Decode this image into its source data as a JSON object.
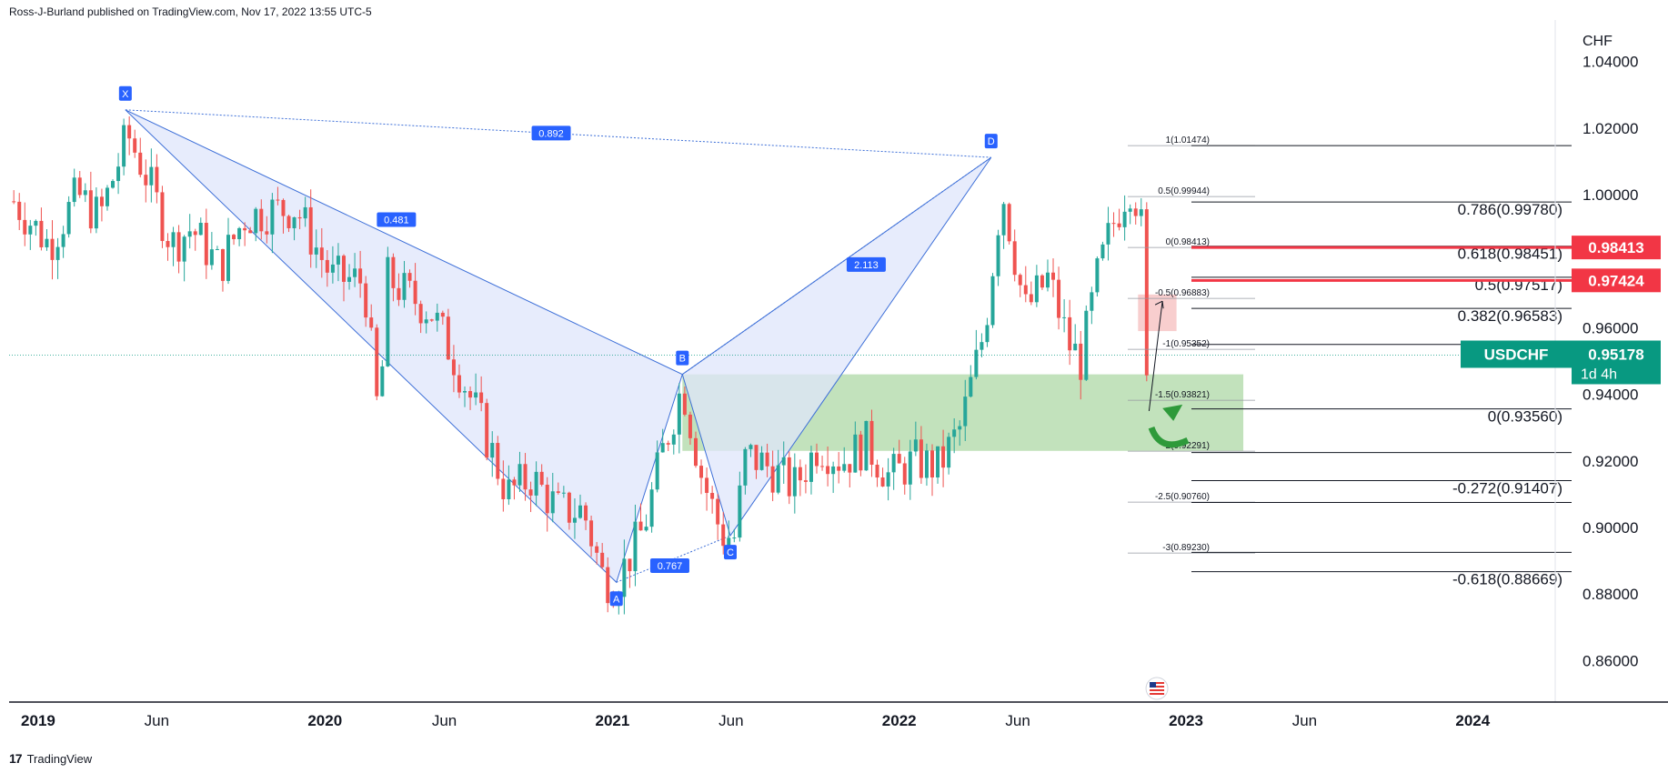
{
  "header": {
    "attribution": "Ross-J-Burland published on TradingView.com, Nov 17, 2022 13:55 UTC-5"
  },
  "footer": {
    "brand": "TradingView",
    "logo_icon": "tradingview-logo-icon"
  },
  "colors": {
    "up": "#26a69a",
    "down": "#ef5350",
    "pattern_fill": "#dfe6fb",
    "pattern_line": "#3d6fd8",
    "label_bg": "#2962ff",
    "green_zone": "#b7ddb0",
    "red_zone": "#f7c5c6",
    "symbol_tag": "#089981",
    "level_tag": "#f23645"
  },
  "chart_data": {
    "type": "candlestick",
    "symbol": "USDCHF",
    "currency_label": "CHF",
    "y_ticks": [
      1.04,
      1.02,
      1.0,
      0.98,
      0.96,
      0.94,
      0.92,
      0.9,
      0.88,
      0.86
    ],
    "y_tick_labels": [
      "1.04000",
      "1.02000",
      "1.00000",
      "",
      "0.96000",
      "0.94000",
      "0.92000",
      "0.90000",
      "0.88000",
      "0.86000"
    ],
    "ylim": [
      0.8475,
      1.0525
    ],
    "xlim": [
      "2018-11-25",
      "2024-04-15"
    ],
    "x_ticks": [
      {
        "date": "2019-01-01",
        "label": "2019",
        "bold": true
      },
      {
        "date": "2019-06-01",
        "label": "Jun",
        "bold": false
      },
      {
        "date": "2020-01-01",
        "label": "2020",
        "bold": true
      },
      {
        "date": "2020-06-01",
        "label": "Jun",
        "bold": false
      },
      {
        "date": "2021-01-01",
        "label": "2021",
        "bold": true
      },
      {
        "date": "2021-06-01",
        "label": "Jun",
        "bold": false
      },
      {
        "date": "2022-01-01",
        "label": "2022",
        "bold": true
      },
      {
        "date": "2022-06-01",
        "label": "Jun",
        "bold": false
      },
      {
        "date": "2023-01-01",
        "label": "2023",
        "bold": true
      },
      {
        "date": "2023-06-01",
        "label": "Jun",
        "bold": false
      },
      {
        "date": "2024-01-01",
        "label": "2024",
        "bold": true
      }
    ],
    "price_path": [
      [
        "2018-12-01",
        0.998
      ],
      [
        "2019-01-15",
        0.985
      ],
      [
        "2019-02-20",
        1.0
      ],
      [
        "2019-03-20",
        0.993
      ],
      [
        "2019-04-25",
        1.018
      ],
      [
        "2019-05-20",
        1.005
      ],
      [
        "2019-06-20",
        0.985
      ],
      [
        "2019-07-15",
        0.99
      ],
      [
        "2019-08-20",
        0.978
      ],
      [
        "2019-09-20",
        0.993
      ],
      [
        "2019-10-20",
        0.995
      ],
      [
        "2019-11-25",
        0.996
      ],
      [
        "2020-01-10",
        0.975
      ],
      [
        "2020-02-20",
        0.974
      ],
      [
        "2020-03-10",
        0.93
      ],
      [
        "2020-03-20",
        0.975
      ],
      [
        "2020-04-15",
        0.97
      ],
      [
        "2020-05-15",
        0.965
      ],
      [
        "2020-06-15",
        0.95
      ],
      [
        "2020-07-20",
        0.93
      ],
      [
        "2020-08-20",
        0.91
      ],
      [
        "2020-09-20",
        0.915
      ],
      [
        "2020-10-25",
        0.905
      ],
      [
        "2020-11-25",
        0.905
      ],
      [
        "2020-12-20",
        0.885
      ],
      [
        "2021-01-05",
        0.883
      ],
      [
        "2021-02-10",
        0.9
      ],
      [
        "2021-03-05",
        0.922
      ],
      [
        "2021-03-31",
        0.943
      ],
      [
        "2021-04-25",
        0.915
      ],
      [
        "2021-05-20",
        0.898
      ],
      [
        "2021-06-05",
        0.897
      ],
      [
        "2021-06-20",
        0.922
      ],
      [
        "2021-07-20",
        0.918
      ],
      [
        "2021-08-20",
        0.912
      ],
      [
        "2021-09-20",
        0.925
      ],
      [
        "2021-10-20",
        0.92
      ],
      [
        "2021-11-20",
        0.925
      ],
      [
        "2021-12-20",
        0.915
      ],
      [
        "2022-01-20",
        0.92
      ],
      [
        "2022-02-20",
        0.918
      ],
      [
        "2022-03-20",
        0.93
      ],
      [
        "2022-04-20",
        0.96
      ],
      [
        "2022-05-12",
        1.002
      ],
      [
        "2022-06-10",
        0.965
      ],
      [
        "2022-07-10",
        0.975
      ],
      [
        "2022-08-05",
        0.955
      ],
      [
        "2022-08-20",
        0.95
      ],
      [
        "2022-09-10",
        0.975
      ],
      [
        "2022-09-28",
        0.99
      ],
      [
        "2022-10-15",
        1.0
      ],
      [
        "2022-10-25",
        1.004
      ],
      [
        "2022-11-05",
        0.99
      ],
      [
        "2022-11-12",
        0.942
      ],
      [
        "2022-11-17",
        0.9518
      ]
    ],
    "harmonic_pattern": {
      "points": [
        {
          "label": "X",
          "date": "2019-04-22",
          "price": 1.0255,
          "pos": "above"
        },
        {
          "label": "A",
          "date": "2021-01-06",
          "price": 0.8835,
          "pos": "below"
        },
        {
          "label": "B",
          "date": "2021-03-31",
          "price": 0.946,
          "pos": "above"
        },
        {
          "label": "C",
          "date": "2021-05-31",
          "price": 0.8975,
          "pos": "below"
        },
        {
          "label": "D",
          "date": "2022-04-28",
          "price": 1.0112,
          "pos": "above"
        }
      ],
      "ratios": [
        {
          "text": "0.892",
          "date": "2020-10-15",
          "price": 1.0185
        },
        {
          "text": "0.481",
          "date": "2020-04-01",
          "price": 0.9925
        },
        {
          "text": "2.113",
          "date": "2021-11-20",
          "price": 0.979
        },
        {
          "text": "0.767",
          "date": "2021-03-15",
          "price": 0.8885
        }
      ]
    },
    "fib_retracement_left": [
      {
        "label": "1(1.01474)",
        "price": 1.01474
      },
      {
        "label": "0.5(0.99944)",
        "price": 0.99944
      },
      {
        "label": "0(0.98413)",
        "price": 0.98413
      },
      {
        "label": "-0.5(0.96883)",
        "price": 0.96883
      },
      {
        "label": "-1(0.95352)",
        "price": 0.95352
      },
      {
        "label": "-1.5(0.93821)",
        "price": 0.93821
      },
      {
        "label": "-2(0.92291)",
        "price": 0.92291
      },
      {
        "label": "-2.5(0.90760)",
        "price": 0.9076
      },
      {
        "label": "-3(0.89230)",
        "price": 0.8923
      }
    ],
    "fib_retracement_right": [
      {
        "label": "",
        "price": 1.01474
      },
      {
        "label": "0.786(0.99780)",
        "price": 0.9978
      },
      {
        "label": "0.618(0.98451)",
        "price": 0.98451
      },
      {
        "label": "0.5(0.97517)",
        "price": 0.97517
      },
      {
        "label": "0.382(0.96583)",
        "price": 0.96583
      },
      {
        "label": "",
        "price": 0.955
      },
      {
        "label": "0(0.93560)",
        "price": 0.9356
      },
      {
        "label": "",
        "price": 0.9225
      },
      {
        "label": "-0.272(0.91407)",
        "price": 0.91407
      },
      {
        "label": "",
        "price": 0.9075
      },
      {
        "label": "",
        "price": 0.8925
      },
      {
        "label": "-0.618(0.88669)",
        "price": 0.88669
      }
    ],
    "zones": [
      {
        "name": "green-demand-zone",
        "from": "2021-03-31",
        "to": "2023-03-15",
        "top": 0.946,
        "bottom": 0.923
      },
      {
        "name": "red-supply-zone",
        "from": "2022-11-01",
        "to": "2022-12-20",
        "top": 0.97,
        "bottom": 0.959
      }
    ],
    "price_tags": [
      {
        "label": "0.98413",
        "price": 0.98413,
        "type": "level"
      },
      {
        "label": "0.97424",
        "price": 0.97424,
        "type": "level"
      }
    ],
    "last_price": {
      "symbol": "USDCHF",
      "value": "0.95178",
      "price": 0.95178,
      "countdown": "1d 4h"
    },
    "event_icon": "us-flag-event-icon"
  }
}
